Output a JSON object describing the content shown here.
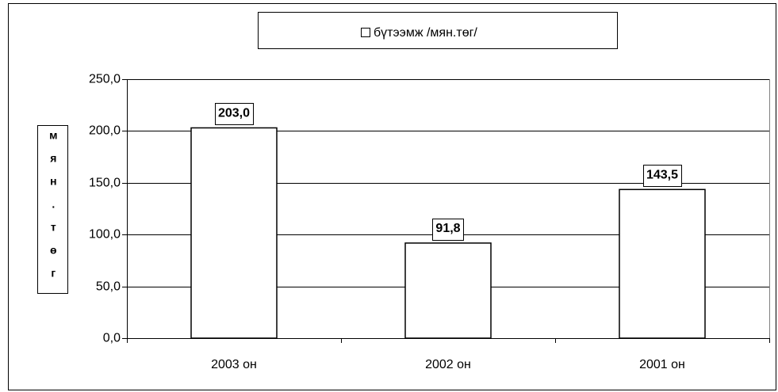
{
  "chart_data": {
    "type": "bar",
    "categories": [
      "2003 он",
      "2002 он",
      "2001 он"
    ],
    "series": [
      {
        "name": "бүтээмж /мян.төг/",
        "color": "#ffffff",
        "values": [
          203.0,
          91.8,
          143.5
        ],
        "value_labels": [
          "203,0",
          "91,8",
          "143,5"
        ]
      }
    ],
    "y_label": "мян.төг",
    "ylim": [
      0,
      250
    ],
    "yticks": [
      {
        "value": 0,
        "label": "0,0"
      },
      {
        "value": 50,
        "label": "50,0"
      },
      {
        "value": 100,
        "label": "100,0"
      },
      {
        "value": 150,
        "label": "150,0"
      },
      {
        "value": 200,
        "label": "200,0"
      },
      {
        "value": 250,
        "label": "250,0"
      }
    ],
    "grid": true
  }
}
